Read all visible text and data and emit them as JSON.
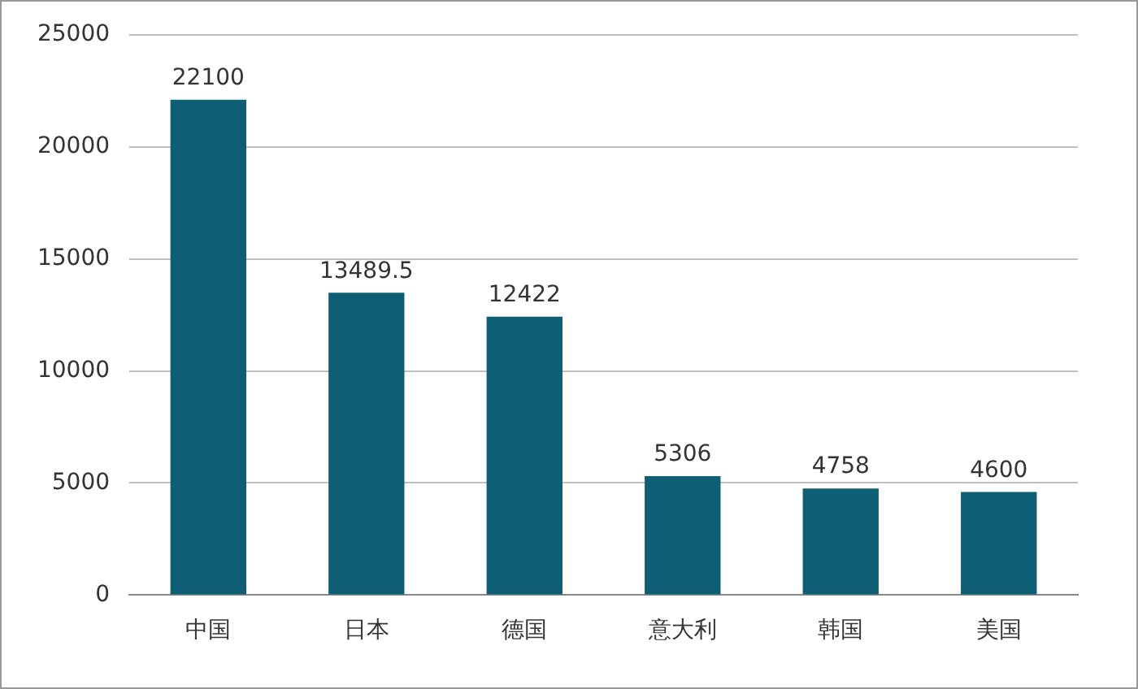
{
  "chart_data": {
    "type": "bar",
    "categories": [
      "中国",
      "日本",
      "德国",
      "意大利",
      "韩国",
      "美国"
    ],
    "values": [
      22100,
      13489.5,
      12422,
      5306,
      4758,
      4600
    ],
    "color": "#0e5f75",
    "ylim": [
      0,
      25000
    ],
    "yticks": [
      0,
      5000,
      10000,
      15000,
      20000,
      25000
    ],
    "grid": "y",
    "legend": false,
    "data_labels": true
  }
}
